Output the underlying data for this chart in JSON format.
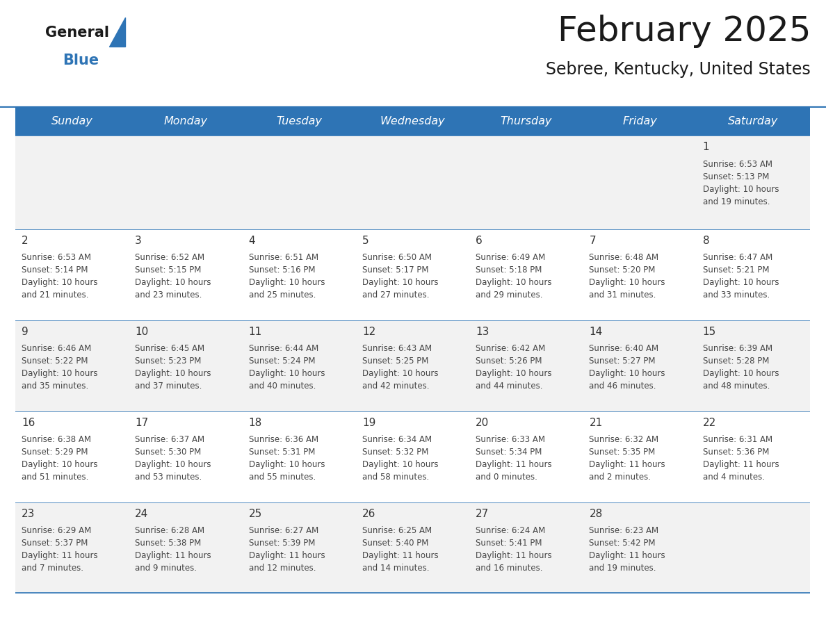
{
  "title": "February 2025",
  "subtitle": "Sebree, Kentucky, United States",
  "header_bg": "#2E74B5",
  "header_text_color": "#FFFFFF",
  "cell_bg_odd": "#F2F2F2",
  "cell_bg_even": "#FFFFFF",
  "day_number_color": "#333333",
  "text_color": "#555555",
  "line_color": "#2E74B5",
  "days_of_week": [
    "Sunday",
    "Monday",
    "Tuesday",
    "Wednesday",
    "Thursday",
    "Friday",
    "Saturday"
  ],
  "weeks": [
    [
      {
        "day": null,
        "sunrise": null,
        "sunset": null,
        "daylight": null
      },
      {
        "day": null,
        "sunrise": null,
        "sunset": null,
        "daylight": null
      },
      {
        "day": null,
        "sunrise": null,
        "sunset": null,
        "daylight": null
      },
      {
        "day": null,
        "sunrise": null,
        "sunset": null,
        "daylight": null
      },
      {
        "day": null,
        "sunrise": null,
        "sunset": null,
        "daylight": null
      },
      {
        "day": null,
        "sunrise": null,
        "sunset": null,
        "daylight": null
      },
      {
        "day": 1,
        "sunrise": "6:53 AM",
        "sunset": "5:13 PM",
        "daylight": "10 hours\nand 19 minutes."
      }
    ],
    [
      {
        "day": 2,
        "sunrise": "6:53 AM",
        "sunset": "5:14 PM",
        "daylight": "10 hours\nand 21 minutes."
      },
      {
        "day": 3,
        "sunrise": "6:52 AM",
        "sunset": "5:15 PM",
        "daylight": "10 hours\nand 23 minutes."
      },
      {
        "day": 4,
        "sunrise": "6:51 AM",
        "sunset": "5:16 PM",
        "daylight": "10 hours\nand 25 minutes."
      },
      {
        "day": 5,
        "sunrise": "6:50 AM",
        "sunset": "5:17 PM",
        "daylight": "10 hours\nand 27 minutes."
      },
      {
        "day": 6,
        "sunrise": "6:49 AM",
        "sunset": "5:18 PM",
        "daylight": "10 hours\nand 29 minutes."
      },
      {
        "day": 7,
        "sunrise": "6:48 AM",
        "sunset": "5:20 PM",
        "daylight": "10 hours\nand 31 minutes."
      },
      {
        "day": 8,
        "sunrise": "6:47 AM",
        "sunset": "5:21 PM",
        "daylight": "10 hours\nand 33 minutes."
      }
    ],
    [
      {
        "day": 9,
        "sunrise": "6:46 AM",
        "sunset": "5:22 PM",
        "daylight": "10 hours\nand 35 minutes."
      },
      {
        "day": 10,
        "sunrise": "6:45 AM",
        "sunset": "5:23 PM",
        "daylight": "10 hours\nand 37 minutes."
      },
      {
        "day": 11,
        "sunrise": "6:44 AM",
        "sunset": "5:24 PM",
        "daylight": "10 hours\nand 40 minutes."
      },
      {
        "day": 12,
        "sunrise": "6:43 AM",
        "sunset": "5:25 PM",
        "daylight": "10 hours\nand 42 minutes."
      },
      {
        "day": 13,
        "sunrise": "6:42 AM",
        "sunset": "5:26 PM",
        "daylight": "10 hours\nand 44 minutes."
      },
      {
        "day": 14,
        "sunrise": "6:40 AM",
        "sunset": "5:27 PM",
        "daylight": "10 hours\nand 46 minutes."
      },
      {
        "day": 15,
        "sunrise": "6:39 AM",
        "sunset": "5:28 PM",
        "daylight": "10 hours\nand 48 minutes."
      }
    ],
    [
      {
        "day": 16,
        "sunrise": "6:38 AM",
        "sunset": "5:29 PM",
        "daylight": "10 hours\nand 51 minutes."
      },
      {
        "day": 17,
        "sunrise": "6:37 AM",
        "sunset": "5:30 PM",
        "daylight": "10 hours\nand 53 minutes."
      },
      {
        "day": 18,
        "sunrise": "6:36 AM",
        "sunset": "5:31 PM",
        "daylight": "10 hours\nand 55 minutes."
      },
      {
        "day": 19,
        "sunrise": "6:34 AM",
        "sunset": "5:32 PM",
        "daylight": "10 hours\nand 58 minutes."
      },
      {
        "day": 20,
        "sunrise": "6:33 AM",
        "sunset": "5:34 PM",
        "daylight": "11 hours\nand 0 minutes."
      },
      {
        "day": 21,
        "sunrise": "6:32 AM",
        "sunset": "5:35 PM",
        "daylight": "11 hours\nand 2 minutes."
      },
      {
        "day": 22,
        "sunrise": "6:31 AM",
        "sunset": "5:36 PM",
        "daylight": "11 hours\nand 4 minutes."
      }
    ],
    [
      {
        "day": 23,
        "sunrise": "6:29 AM",
        "sunset": "5:37 PM",
        "daylight": "11 hours\nand 7 minutes."
      },
      {
        "day": 24,
        "sunrise": "6:28 AM",
        "sunset": "5:38 PM",
        "daylight": "11 hours\nand 9 minutes."
      },
      {
        "day": 25,
        "sunrise": "6:27 AM",
        "sunset": "5:39 PM",
        "daylight": "11 hours\nand 12 minutes."
      },
      {
        "day": 26,
        "sunrise": "6:25 AM",
        "sunset": "5:40 PM",
        "daylight": "11 hours\nand 14 minutes."
      },
      {
        "day": 27,
        "sunrise": "6:24 AM",
        "sunset": "5:41 PM",
        "daylight": "11 hours\nand 16 minutes."
      },
      {
        "day": 28,
        "sunrise": "6:23 AM",
        "sunset": "5:42 PM",
        "daylight": "11 hours\nand 19 minutes."
      },
      {
        "day": null,
        "sunrise": null,
        "sunset": null,
        "daylight": null
      }
    ]
  ],
  "fig_width": 11.88,
  "fig_height": 9.18,
  "dpi": 100
}
